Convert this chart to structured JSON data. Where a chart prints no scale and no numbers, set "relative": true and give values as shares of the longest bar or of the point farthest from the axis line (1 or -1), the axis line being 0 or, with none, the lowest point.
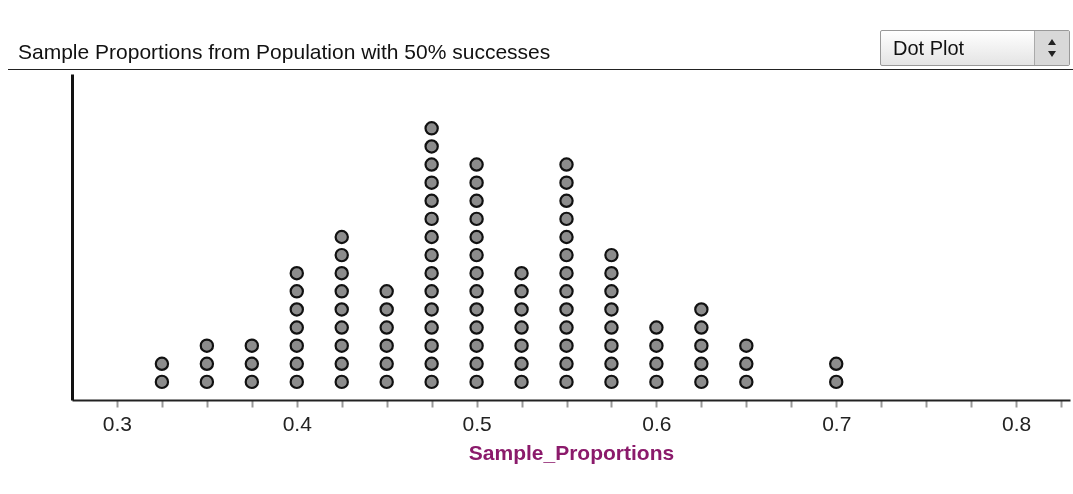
{
  "chart_data": {
    "type": "scatter",
    "title": "Sample Proportions from Population with 50% successes",
    "xlabel": "Sample_Proportions",
    "annotations": [
      "Dot Plot"
    ],
    "x": [
      0.325,
      0.325,
      0.35,
      0.35,
      0.35,
      0.375,
      0.375,
      0.375,
      0.4,
      0.4,
      0.4,
      0.4,
      0.4,
      0.4,
      0.4,
      0.425,
      0.425,
      0.425,
      0.425,
      0.425,
      0.425,
      0.425,
      0.425,
      0.425,
      0.45,
      0.45,
      0.45,
      0.45,
      0.45,
      0.45,
      0.475,
      0.475,
      0.475,
      0.475,
      0.475,
      0.475,
      0.475,
      0.475,
      0.475,
      0.475,
      0.475,
      0.475,
      0.475,
      0.475,
      0.475,
      0.5,
      0.5,
      0.5,
      0.5,
      0.5,
      0.5,
      0.5,
      0.5,
      0.5,
      0.5,
      0.5,
      0.5,
      0.5,
      0.525,
      0.525,
      0.525,
      0.525,
      0.525,
      0.525,
      0.525,
      0.55,
      0.55,
      0.55,
      0.55,
      0.55,
      0.55,
      0.55,
      0.55,
      0.55,
      0.55,
      0.55,
      0.55,
      0.55,
      0.575,
      0.575,
      0.575,
      0.575,
      0.575,
      0.575,
      0.575,
      0.575,
      0.6,
      0.6,
      0.6,
      0.6,
      0.625,
      0.625,
      0.625,
      0.625,
      0.625,
      0.65,
      0.65,
      0.65,
      0.7,
      0.7
    ],
    "values": [
      0.0667,
      0.1333,
      0.0667,
      0.1333,
      0.2,
      0.0667,
      0.1333,
      0.2,
      0.0667,
      0.1333,
      0.2,
      0.2667,
      0.3333,
      0.4,
      0.4667,
      0.0667,
      0.1333,
      0.2,
      0.2667,
      0.3333,
      0.4,
      0.4667,
      0.5333,
      0.6,
      0.0667,
      0.1333,
      0.2,
      0.2667,
      0.3333,
      0.4,
      0.0667,
      0.1333,
      0.2,
      0.2667,
      0.3333,
      0.4,
      0.4667,
      0.5333,
      0.6,
      0.6667,
      0.7333,
      0.8,
      0.8667,
      0.9333,
      1,
      0.0667,
      0.1333,
      0.2,
      0.2667,
      0.3333,
      0.4,
      0.4667,
      0.5333,
      0.6,
      0.6667,
      0.7333,
      0.8,
      0.8667,
      0.0667,
      0.1333,
      0.2,
      0.2667,
      0.3333,
      0.4,
      0.4667,
      0.0667,
      0.1333,
      0.2,
      0.2667,
      0.3333,
      0.4,
      0.4667,
      0.5333,
      0.6,
      0.6667,
      0.7333,
      0.8,
      0.8667,
      0.0667,
      0.1333,
      0.2,
      0.2667,
      0.3333,
      0.4,
      0.4667,
      0.5333,
      0.0667,
      0.1333,
      0.2,
      0.2667,
      0.0667,
      0.1333,
      0.2,
      0.2667,
      0.3333,
      0.0667,
      0.1333,
      0.2,
      0.0667,
      0.1333
    ],
    "relative": true,
    "color": "#8c8c8c",
    "marker": "circle",
    "tick_labels": "x",
    "grid": false,
    "xlim": [
      0.275,
      0.83
    ],
    "xticks": [
      0.3,
      {
        "value": 0.325,
        "label": null
      },
      {
        "value": 0.35,
        "label": null
      },
      {
        "value": 0.375,
        "label": null
      },
      0.4,
      {
        "value": 0.425,
        "label": null
      },
      {
        "value": 0.45,
        "label": null
      },
      {
        "value": 0.475,
        "label": null
      },
      0.5,
      {
        "value": 0.525,
        "label": null
      },
      {
        "value": 0.55,
        "label": null
      },
      {
        "value": 0.575,
        "label": null
      },
      0.6,
      {
        "value": 0.625,
        "label": null
      },
      {
        "value": 0.65,
        "label": null
      },
      {
        "value": 0.675,
        "label": null
      },
      0.7,
      {
        "value": 0.725,
        "label": null
      },
      {
        "value": 0.75,
        "label": null
      },
      {
        "value": 0.775,
        "label": null
      },
      0.8,
      {
        "value": 0.825,
        "label": null
      }
    ]
  }
}
